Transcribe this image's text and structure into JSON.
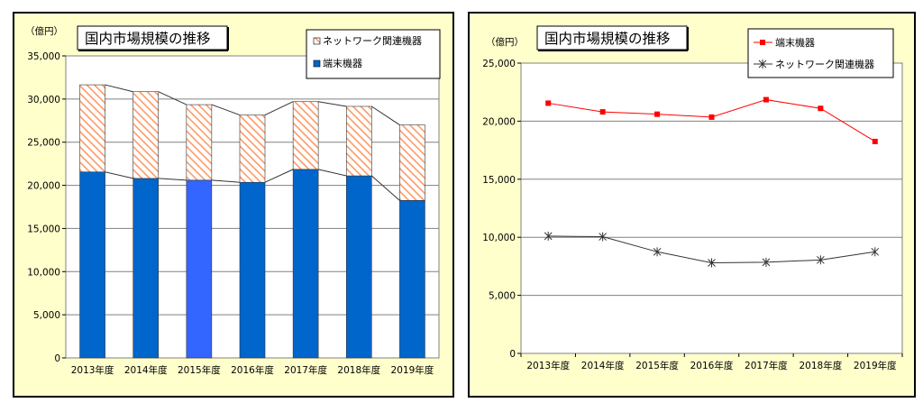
{
  "chart_data": [
    {
      "type": "bar",
      "stacked": true,
      "title": "国内市場規模の推移",
      "unit_label": "（億円）",
      "categories": [
        "2013年度",
        "2014年度",
        "2015年度",
        "2016年度",
        "2017年度",
        "2018年度",
        "2019年度"
      ],
      "series": [
        {
          "name": "端末機器",
          "values": [
            21550,
            20800,
            20600,
            20350,
            21850,
            21100,
            18250
          ],
          "color": "#0066cc"
        },
        {
          "name": "ネットワーク関連機器",
          "values": [
            10100,
            10050,
            8750,
            7800,
            7850,
            8050,
            8750
          ],
          "color": "#ff9966"
        }
      ],
      "highlight": {
        "index": 2,
        "color": "#3366ff"
      },
      "ylim": [
        0,
        35000
      ],
      "yticks": [
        "0",
        "5,000",
        "10,000",
        "15,000",
        "20,000",
        "25,000",
        "30,000",
        "35,000"
      ],
      "ytick_values": [
        0,
        5000,
        10000,
        15000,
        20000,
        25000,
        30000,
        35000
      ],
      "legend_order": [
        "ネットワーク関連機器",
        "端末機器"
      ],
      "legend_position": "top-right",
      "grid": true
    },
    {
      "type": "line",
      "title": "国内市場規模の推移",
      "unit_label": "（億円）",
      "categories": [
        "2013年度",
        "2014年度",
        "2015年度",
        "2016年度",
        "2017年度",
        "2018年度",
        "2019年度"
      ],
      "series": [
        {
          "name": "端末機器",
          "values": [
            21550,
            20800,
            20600,
            20350,
            21850,
            21100,
            18250
          ],
          "color": "#ff0000",
          "marker": "square"
        },
        {
          "name": "ネットワーク関連機器",
          "values": [
            10100,
            10050,
            8750,
            7800,
            7850,
            8050,
            8750
          ],
          "color": "#333333",
          "marker": "asterisk"
        }
      ],
      "ylim": [
        0,
        25000
      ],
      "yticks": [
        "0",
        "5,000",
        "10,000",
        "15,000",
        "20,000",
        "25,000"
      ],
      "ytick_values": [
        0,
        5000,
        10000,
        15000,
        20000,
        25000
      ],
      "legend_position": "top-right",
      "grid": true
    }
  ]
}
